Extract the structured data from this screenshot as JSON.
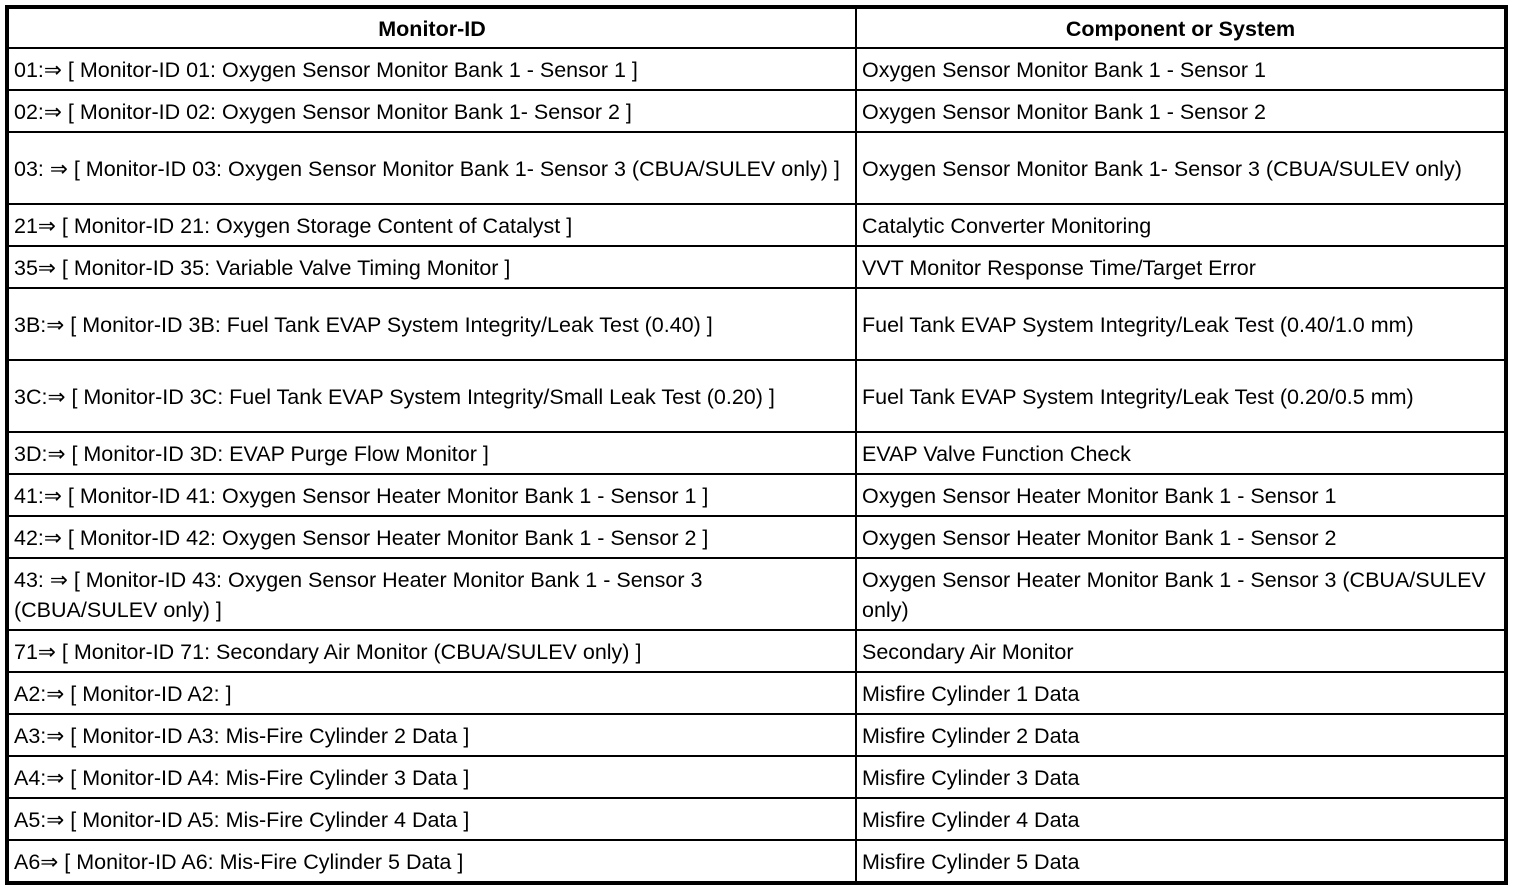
{
  "table": {
    "headers": [
      "Monitor-ID",
      "Component or System"
    ],
    "rows": [
      [
        "01:⇒ [ Monitor-ID 01: Oxygen Sensor Monitor Bank 1 - Sensor 1 ]",
        "Oxygen Sensor Monitor Bank 1 - Sensor 1"
      ],
      [
        "02:⇒ [ Monitor-ID 02: Oxygen Sensor Monitor Bank 1- Sensor 2 ]",
        "Oxygen Sensor Monitor Bank 1 - Sensor 2"
      ],
      [
        "03: ⇒ [ Monitor-ID 03: Oxygen Sensor Monitor Bank 1- Sensor 3 (CBUA/SULEV only) ]",
        "Oxygen Sensor Monitor Bank 1- Sensor 3 (CBUA/SULEV only)"
      ],
      [
        "21⇒ [ Monitor-ID 21: Oxygen Storage Content of Catalyst ]",
        "Catalytic Converter Monitoring"
      ],
      [
        "35⇒ [ Monitor-ID 35: Variable Valve Timing Monitor ]",
        "VVT Monitor Response Time/Target Error"
      ],
      [
        "3B:⇒ [ Monitor-ID 3B: Fuel Tank EVAP System Integrity/Leak Test (0.40) ]",
        "Fuel Tank EVAP System Integrity/Leak Test (0.40/1.0 mm)"
      ],
      [
        "3C:⇒ [ Monitor-ID 3C: Fuel Tank EVAP System Integrity/Small Leak Test (0.20) ]",
        "Fuel Tank EVAP System Integrity/Leak Test (0.20/0.5 mm)"
      ],
      [
        "3D:⇒ [ Monitor-ID 3D: EVAP Purge Flow Monitor ]",
        "EVAP Valve Function Check"
      ],
      [
        "41:⇒ [ Monitor-ID 41: Oxygen Sensor Heater Monitor Bank 1 - Sensor 1 ]",
        "Oxygen Sensor Heater Monitor Bank 1 - Sensor 1"
      ],
      [
        "42:⇒ [ Monitor-ID 42: Oxygen Sensor Heater Monitor Bank 1 - Sensor 2 ]",
        "Oxygen Sensor Heater Monitor Bank 1 - Sensor 2"
      ],
      [
        "43: ⇒ [ Monitor-ID 43: Oxygen Sensor Heater Monitor Bank 1 - Sensor 3 (CBUA/SULEV only) ]",
        "Oxygen Sensor Heater Monitor Bank 1 - Sensor 3 (CBUA/SULEV only)"
      ],
      [
        "71⇒ [ Monitor-ID 71: Secondary Air Monitor (CBUA/SULEV only) ]",
        "Secondary Air Monitor"
      ],
      [
        "A2:⇒ [ Monitor-ID A2: ]",
        "Misfire Cylinder 1 Data"
      ],
      [
        "A3:⇒ [ Monitor-ID A3: Mis-Fire Cylinder 2 Data ]",
        "Misfire Cylinder 2 Data"
      ],
      [
        "A4:⇒ [ Monitor-ID A4: Mis-Fire Cylinder 3 Data ]",
        "Misfire Cylinder 3 Data"
      ],
      [
        "A5:⇒ [ Monitor-ID A5: Mis-Fire Cylinder 4 Data ]",
        "Misfire Cylinder 4 Data"
      ],
      [
        "A6⇒ [ Monitor-ID A6: Mis-Fire Cylinder 5 Data ]",
        "Misfire Cylinder 5 Data"
      ]
    ]
  }
}
